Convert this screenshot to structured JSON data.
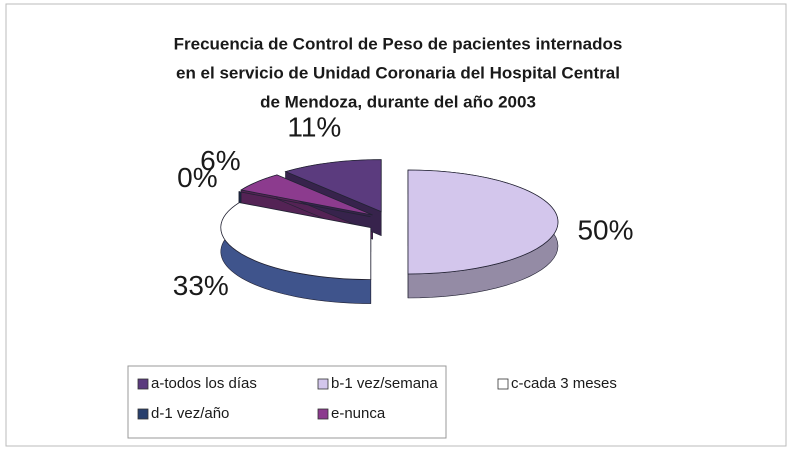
{
  "chart_data": {
    "type": "pie3d",
    "title": [
      "Frecuencia de Control de Peso de pacientes internados",
      "en el servicio de Unidad Coronaria del Hospital Central",
      "de Mendoza, durante del año 2003"
    ],
    "categories": [
      "a-todos los días",
      "b-1 vez/semana",
      "c-cada 3 meses",
      "d-1 vez/año",
      "e-nunca"
    ],
    "values": [
      11,
      50,
      33,
      0,
      6
    ],
    "value_labels": [
      "11%",
      "50%",
      "33%",
      "0%",
      "6%"
    ],
    "colors": [
      "#5b3b7e",
      "#d3c6ec",
      "#ffffff",
      "#283f6d",
      "#8c3b8e"
    ],
    "legend": "bottom"
  }
}
